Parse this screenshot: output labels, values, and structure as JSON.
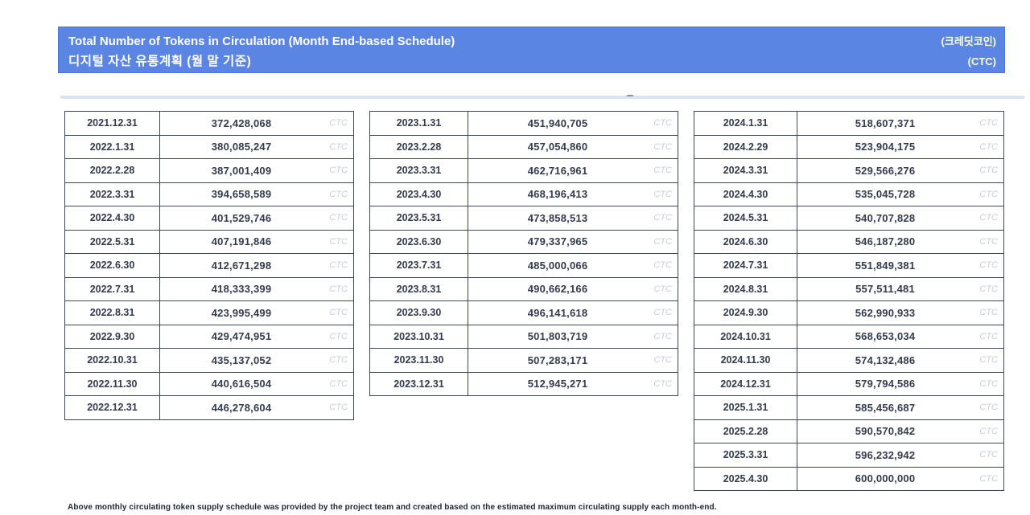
{
  "header": {
    "title_en": "Total Number of Tokens in Circulation (Month End-based Schedule)",
    "title_ko": "디지털 자산 유통계획 (월 말 기준)",
    "unit_ko": "(크레딧코인)",
    "unit_code": "(CTC)"
  },
  "unit": "CTC",
  "tables": [
    {
      "rows": [
        {
          "date": "2021.12.31",
          "value": "372,428,068"
        },
        {
          "date": "2022.1.31",
          "value": "380,085,247"
        },
        {
          "date": "2022.2.28",
          "value": "387,001,409"
        },
        {
          "date": "2022.3.31",
          "value": "394,658,589"
        },
        {
          "date": "2022.4.30",
          "value": "401,529,746"
        },
        {
          "date": "2022.5.31",
          "value": "407,191,846"
        },
        {
          "date": "2022.6.30",
          "value": "412,671,298"
        },
        {
          "date": "2022.7.31",
          "value": "418,333,399"
        },
        {
          "date": "2022.8.31",
          "value": "423,995,499"
        },
        {
          "date": "2022.9.30",
          "value": "429,474,951"
        },
        {
          "date": "2022.10.31",
          "value": "435,137,052"
        },
        {
          "date": "2022.11.30",
          "value": "440,616,504"
        },
        {
          "date": "2022.12.31",
          "value": "446,278,604"
        }
      ]
    },
    {
      "rows": [
        {
          "date": "2023.1.31",
          "value": "451,940,705"
        },
        {
          "date": "2023.2.28",
          "value": "457,054,860"
        },
        {
          "date": "2023.3.31",
          "value": "462,716,961"
        },
        {
          "date": "2023.4.30",
          "value": "468,196,413"
        },
        {
          "date": "2023.5.31",
          "value": "473,858,513"
        },
        {
          "date": "2023.6.30",
          "value": "479,337,965"
        },
        {
          "date": "2023.7.31",
          "value": "485,000,066"
        },
        {
          "date": "2023.8.31",
          "value": "490,662,166"
        },
        {
          "date": "2023.9.30",
          "value": "496,141,618"
        },
        {
          "date": "2023.10.31",
          "value": "501,803,719"
        },
        {
          "date": "2023.11.30",
          "value": "507,283,171"
        },
        {
          "date": "2023.12.31",
          "value": "512,945,271"
        }
      ]
    },
    {
      "rows": [
        {
          "date": "2024.1.31",
          "value": "518,607,371"
        },
        {
          "date": "2024.2.29",
          "value": "523,904,175"
        },
        {
          "date": "2024.3.31",
          "value": "529,566,276"
        },
        {
          "date": "2024.4.30",
          "value": "535,045,728"
        },
        {
          "date": "2024.5.31",
          "value": "540,707,828"
        },
        {
          "date": "2024.6.30",
          "value": "546,187,280"
        },
        {
          "date": "2024.7.31",
          "value": "551,849,381"
        },
        {
          "date": "2024.8.31",
          "value": "557,511,481"
        },
        {
          "date": "2024.9.30",
          "value": "562,990,933"
        },
        {
          "date": "2024.10.31",
          "value": "568,653,034"
        },
        {
          "date": "2024.11.30",
          "value": "574,132,486"
        },
        {
          "date": "2024.12.31",
          "value": "579,794,586"
        },
        {
          "date": "2025.1.31",
          "value": "585,456,687"
        },
        {
          "date": "2025.2.28",
          "value": "590,570,842"
        },
        {
          "date": "2025.3.31",
          "value": "596,232,942"
        },
        {
          "date": "2025.4.30",
          "value": "600,000,000"
        }
      ]
    }
  ],
  "footnote": "Above monthly circulating token supply schedule was provided by the project team and created based on the estimated maximum circulating supply each month-end.",
  "colors": {
    "banner_bg": "#5a85e2",
    "banner_border": "#4d78d2",
    "banner_text": "#ffffff",
    "banner_accent": "#ffffc2",
    "table_border": "#3f4757",
    "cell_text": "#333b4d",
    "unit_text": "#c9cdd9"
  }
}
